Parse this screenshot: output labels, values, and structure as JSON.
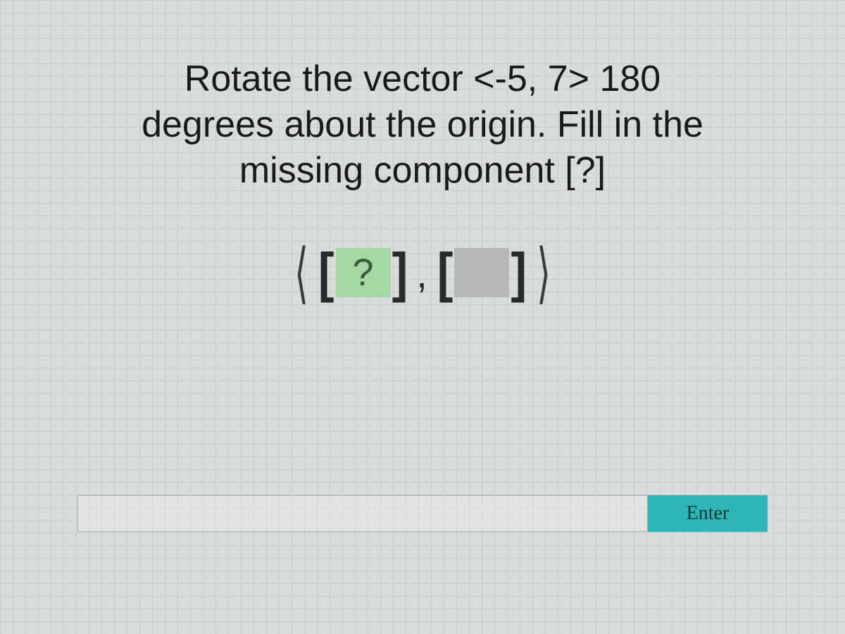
{
  "question": {
    "line1": "Rotate the vector <-5, 7> 180",
    "line2": "degrees about the origin. Fill in the",
    "line3": "missing component [?]"
  },
  "answer_display": {
    "open_bracket": "⟨",
    "close_bracket": "⟩",
    "sq_open": "[",
    "sq_close": "]",
    "box1_value": "?",
    "box2_value": "",
    "separator": ",",
    "active_box_color": "#a5d8a5",
    "inactive_box_color": "#b5b8b6"
  },
  "input": {
    "value": "",
    "placeholder": ""
  },
  "button": {
    "label": "Enter",
    "bg_color": "#2fb5b5"
  },
  "layout": {
    "background_color": "#d8dcda",
    "grid_color": "#c8ccc9",
    "question_fontsize": 52,
    "answer_fontsize": 58
  }
}
